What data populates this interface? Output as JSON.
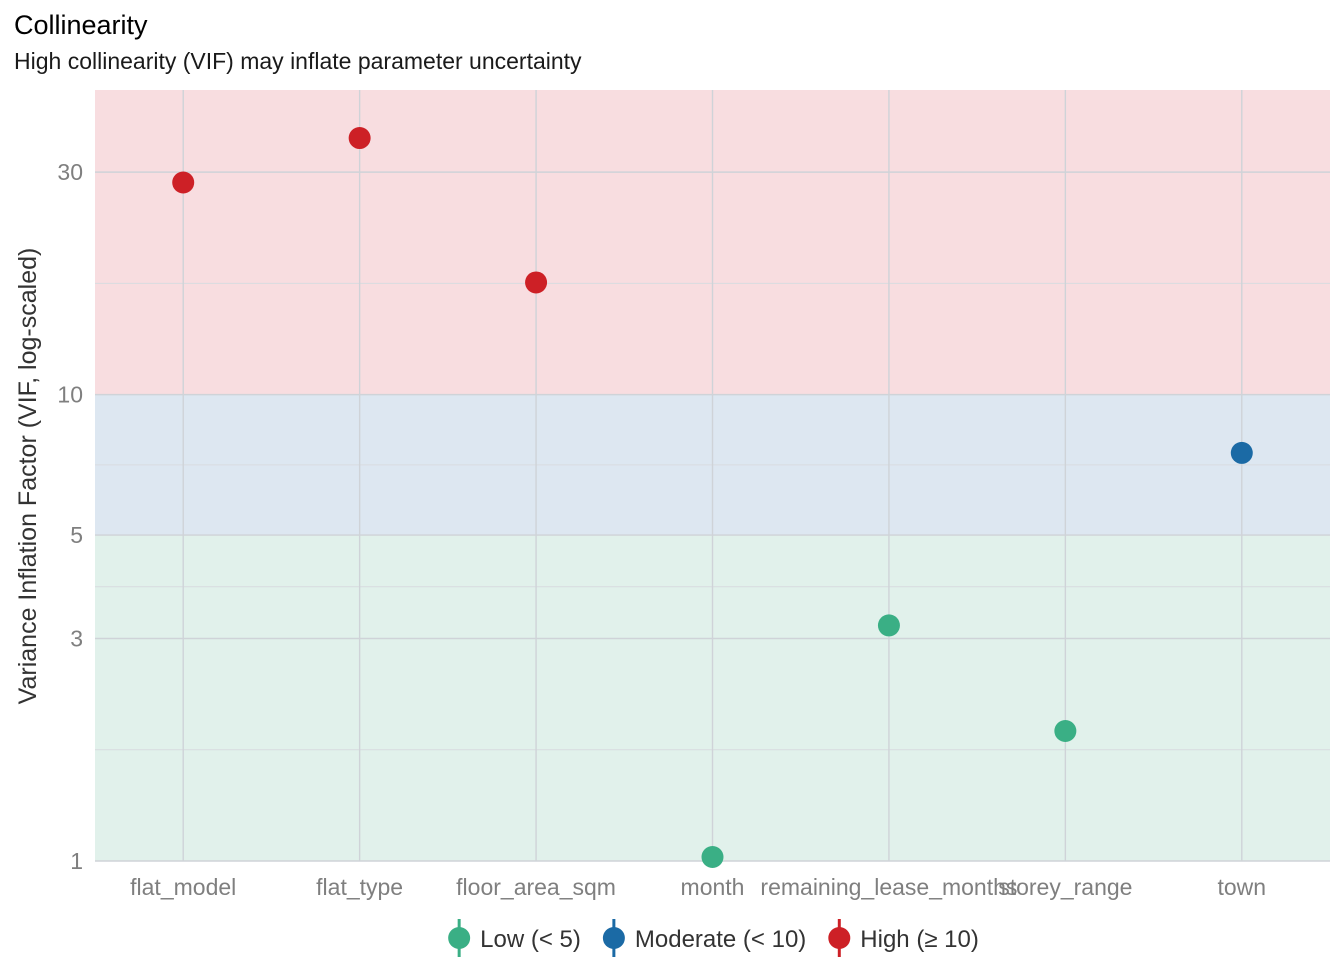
{
  "chart_data": {
    "type": "scatter",
    "title": "Collinearity",
    "subtitle": "High collinearity (VIF) may inflate parameter uncertainty",
    "xlabel": "",
    "ylabel": "Variance Inflation Factor (VIF, log-scaled)",
    "y_scale": "log",
    "ylim": [
      1,
      45
    ],
    "y_ticks": [
      1,
      3,
      5,
      10,
      30
    ],
    "grid": true,
    "categories": [
      "flat_model",
      "flat_type",
      "floor_area_sqm",
      "month",
      "remaining_lease_months",
      "storey_range",
      "town"
    ],
    "values": [
      28.5,
      35.5,
      17.4,
      1.02,
      3.2,
      1.9,
      7.5
    ],
    "groups": [
      "High",
      "High",
      "High",
      "Low",
      "Low",
      "Low",
      "Moderate"
    ],
    "bands": [
      {
        "name": "Low",
        "from": 1,
        "to": 5,
        "color": "#e1f1eb"
      },
      {
        "name": "Moderate",
        "from": 5,
        "to": 10,
        "color": "#dde7f1"
      },
      {
        "name": "High",
        "from": 10,
        "to": 45,
        "color": "#f8dde0"
      }
    ],
    "legend_position": "bottom",
    "legend": [
      {
        "key": "Low",
        "label": "Low (< 5)",
        "color": "#3aaf85"
      },
      {
        "key": "Moderate",
        "label": "Moderate (< 10)",
        "color": "#1b6aa5"
      },
      {
        "key": "High",
        "label": "High (≥ 10)",
        "color": "#cd2026"
      }
    ]
  }
}
